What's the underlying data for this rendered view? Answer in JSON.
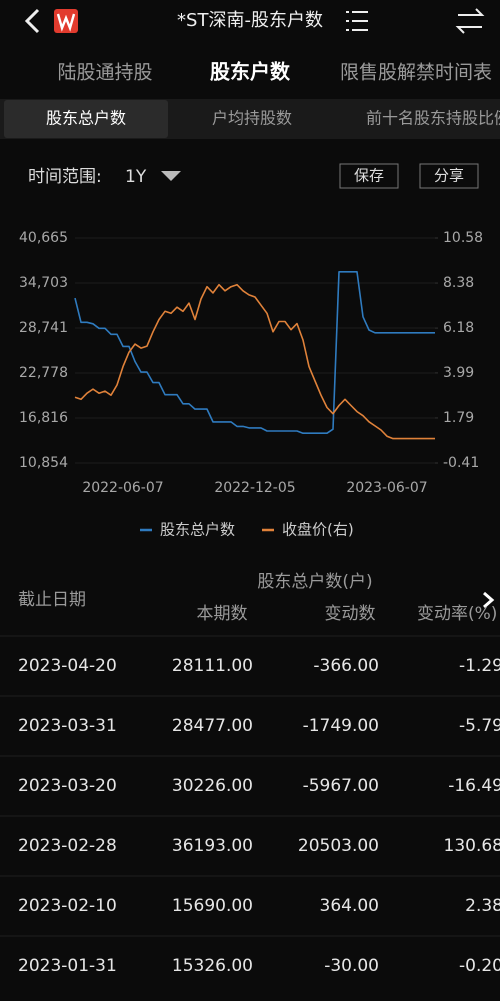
{
  "header": {
    "title": "*ST深南-股东户数"
  },
  "tabs": [
    "陆股通持股",
    "股东户数",
    "限售股解禁时间表"
  ],
  "sub_tabs": [
    "股东总户数",
    "户均持股数",
    "前十名股东持股比例"
  ],
  "range": {
    "label": "时间范围:",
    "value": "1Y"
  },
  "buttons": [
    "保存",
    "分享"
  ],
  "chart_data": {
    "type": "line",
    "categories": [
      null,
      null,
      null,
      null,
      null,
      null,
      null,
      null,
      "2022-06-07",
      null,
      null,
      null,
      null,
      null,
      null,
      null,
      null,
      null,
      null,
      null,
      null,
      null,
      null,
      null,
      null,
      null,
      null,
      null,
      null,
      null,
      "2022-12-05",
      null,
      null,
      null,
      null,
      null,
      null,
      null,
      null,
      null,
      null,
      null,
      null,
      null,
      null,
      null,
      null,
      null,
      null,
      null,
      null,
      null,
      "2023-06-07",
      null,
      null,
      null,
      null,
      null,
      null,
      null,
      null
    ],
    "series": [
      {
        "name": "股东总户数",
        "color": "#2f7bbf",
        "values": [
          32700,
          29500,
          29500,
          29300,
          28700,
          28700,
          27900,
          27900,
          26300,
          26300,
          24300,
          22900,
          22900,
          21500,
          21500,
          19900,
          19900,
          19900,
          18700,
          18700,
          18000,
          18000,
          18000,
          16300,
          16300,
          16300,
          16300,
          15700,
          15700,
          15500,
          15500,
          15500,
          15100,
          15100,
          15100,
          15100,
          15100,
          15100,
          14800,
          14800,
          14800,
          14800,
          14800,
          15326,
          36193,
          36193,
          36193,
          36193,
          30226,
          28477,
          28111,
          28111,
          28111,
          28111,
          28111,
          28111,
          28111,
          28111,
          28111,
          28111,
          28111
        ]
      },
      {
        "name": "收盘价(右)",
        "color": "#e0823a",
        "axis": "y2",
        "values": [
          2.8,
          2.7,
          3.0,
          3.2,
          3.0,
          3.1,
          2.9,
          3.4,
          4.3,
          5.0,
          5.4,
          5.2,
          5.3,
          6.0,
          6.6,
          7.0,
          6.9,
          7.2,
          7.0,
          7.4,
          6.6,
          7.6,
          8.2,
          7.9,
          8.3,
          8.0,
          8.2,
          8.3,
          8.0,
          7.8,
          7.7,
          7.3,
          6.9,
          6.0,
          6.5,
          6.5,
          6.1,
          6.4,
          5.6,
          4.3,
          3.6,
          2.9,
          2.3,
          2.0,
          2.4,
          2.7,
          2.4,
          2.1,
          1.9,
          1.6,
          1.4,
          1.2,
          0.9,
          0.78,
          0.78,
          0.78,
          0.78,
          0.78,
          0.78,
          0.78,
          0.78
        ]
      }
    ],
    "ylim": [
      10854,
      40665
    ],
    "yticks": [
      {
        "value": 40665,
        "label": "40,665"
      },
      {
        "value": 34703,
        "label": "34,703"
      },
      {
        "value": 28741,
        "label": "28,741"
      },
      {
        "value": 22778,
        "label": "22,778"
      },
      {
        "value": 16816,
        "label": "16,816"
      },
      {
        "value": 10854,
        "label": "10,854"
      }
    ],
    "y2lim": [
      -0.41,
      10.58
    ],
    "y2ticks": [
      10.58,
      8.38,
      6.18,
      3.99,
      1.79,
      -0.41
    ],
    "grid": true
  },
  "table": {
    "group_header": "股东总户数(户)",
    "columns": [
      "截止日期",
      "本期数",
      "变动数",
      "变动率(%)"
    ],
    "rows": [
      [
        "2023-04-20",
        "28111.00",
        "-366.00",
        "-1.29"
      ],
      [
        "2023-03-31",
        "28477.00",
        "-1749.00",
        "-5.79"
      ],
      [
        "2023-03-20",
        "30226.00",
        "-5967.00",
        "-16.49"
      ],
      [
        "2023-02-28",
        "36193.00",
        "20503.00",
        "130.68"
      ],
      [
        "2023-02-10",
        "15690.00",
        "364.00",
        "2.38"
      ],
      [
        "2023-01-31",
        "15326.00",
        "-30.00",
        "-0.20"
      ]
    ]
  }
}
